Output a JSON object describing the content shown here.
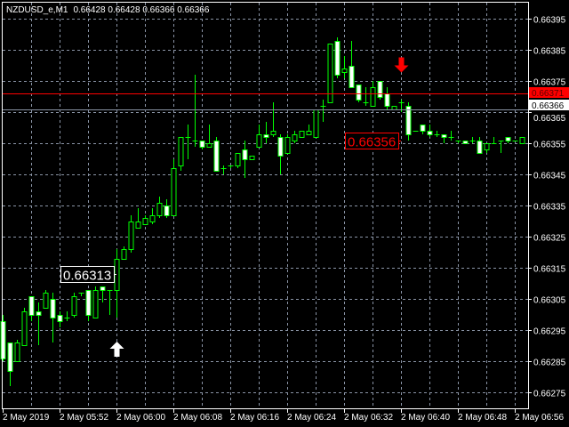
{
  "header": {
    "symbol": "NZDUSD_e,M1",
    "ohlc": "0.66428 0.66428 0.66366 0.66366"
  },
  "colors": {
    "background": "#000000",
    "grid": "#8a94a6",
    "candle": "#00ff00",
    "bear_body": "#ffffff",
    "bull_body": "#000000",
    "bid_line": "#8a94a6",
    "ask_line": "#ff0000",
    "sell_arrow": "#ff0000",
    "buy_arrow": "#ffffff"
  },
  "chart_data": {
    "type": "candlestick",
    "title": "",
    "grid": true,
    "ylim": [
      0.6627,
      0.664
    ],
    "y_ticks": [
      "0.66395",
      "0.66385",
      "0.66375",
      "0.66365",
      "0.66355",
      "0.66345",
      "0.66335",
      "0.66325",
      "0.66315",
      "0.66305",
      "0.66295",
      "0.66285",
      "0.66275"
    ],
    "x_tick_labels": [
      "2 May 2019",
      "2 May 05:52",
      "2 May 06:00",
      "2 May 06:08",
      "2 May 06:16",
      "2 May 06:24",
      "2 May 06:32",
      "2 May 06:40",
      "2 May 06:48",
      "2 May 06:56"
    ],
    "candles_ohlc": [
      [
        0.66298,
        0.663,
        0.66285,
        0.66286
      ],
      [
        0.66291,
        0.66291,
        0.66277,
        0.66282
      ],
      [
        0.66285,
        0.66292,
        0.66285,
        0.66291
      ],
      [
        0.6629,
        0.66302,
        0.6629,
        0.66301
      ],
      [
        0.66306,
        0.66306,
        0.66298,
        0.663
      ],
      [
        0.66301,
        0.66304,
        0.6629,
        0.663
      ],
      [
        0.66302,
        0.66308,
        0.66302,
        0.66307
      ],
      [
        0.66305,
        0.66307,
        0.66291,
        0.66299
      ],
      [
        0.663,
        0.66301,
        0.66296,
        0.66298
      ],
      [
        0.66299,
        0.66301,
        0.66298,
        0.66299
      ],
      [
        0.663,
        0.66307,
        0.66299,
        0.66306
      ],
      [
        0.66307,
        0.66307,
        0.66306,
        0.66307
      ],
      [
        0.66308,
        0.66308,
        0.66298,
        0.663
      ],
      [
        0.66299,
        0.66309,
        0.66299,
        0.66308
      ],
      [
        0.66309,
        0.66309,
        0.66304,
        0.66308
      ],
      [
        0.66308,
        0.66308,
        0.663,
        0.66308
      ],
      [
        0.66308,
        0.66321,
        0.66299,
        0.66318
      ],
      [
        0.66318,
        0.66322,
        0.66318,
        0.66321
      ],
      [
        0.66321,
        0.66332,
        0.6632,
        0.6633
      ],
      [
        0.66328,
        0.66334,
        0.66328,
        0.6633
      ],
      [
        0.66329,
        0.66332,
        0.66329,
        0.66331
      ],
      [
        0.6633,
        0.66334,
        0.66329,
        0.66332
      ],
      [
        0.66332,
        0.66338,
        0.66331,
        0.66336
      ],
      [
        0.66335,
        0.66337,
        0.66331,
        0.66332
      ],
      [
        0.66332,
        0.6635,
        0.66332,
        0.66347
      ],
      [
        0.66348,
        0.66357,
        0.66346,
        0.66357
      ],
      [
        0.66357,
        0.66361,
        0.6635,
        0.66357
      ],
      [
        0.66356,
        0.66377,
        0.66354,
        0.66356
      ],
      [
        0.66356,
        0.66356,
        0.66353,
        0.66354
      ],
      [
        0.66354,
        0.66361,
        0.66354,
        0.66355
      ],
      [
        0.66356,
        0.66357,
        0.66346,
        0.66346
      ],
      [
        0.66347,
        0.66348,
        0.66345,
        0.66347
      ],
      [
        0.66348,
        0.66348,
        0.66347,
        0.66348
      ],
      [
        0.66348,
        0.66352,
        0.66347,
        0.66352
      ],
      [
        0.66353,
        0.66356,
        0.66344,
        0.6635
      ],
      [
        0.6635,
        0.66351,
        0.6635,
        0.66351
      ],
      [
        0.66354,
        0.66361,
        0.66354,
        0.66358
      ],
      [
        0.66358,
        0.66362,
        0.66355,
        0.66357
      ],
      [
        0.66358,
        0.66368,
        0.66357,
        0.66359
      ],
      [
        0.66357,
        0.66358,
        0.66345,
        0.66351
      ],
      [
        0.66352,
        0.66358,
        0.66352,
        0.66357
      ],
      [
        0.66356,
        0.66359,
        0.66355,
        0.66358
      ],
      [
        0.66357,
        0.66359,
        0.66357,
        0.66359
      ],
      [
        0.66358,
        0.66361,
        0.66358,
        0.66359
      ],
      [
        0.66357,
        0.66366,
        0.66357,
        0.66366
      ],
      [
        0.66367,
        0.66369,
        0.66362,
        0.66367
      ],
      [
        0.66368,
        0.66387,
        0.66368,
        0.66387
      ],
      [
        0.66388,
        0.66389,
        0.66376,
        0.66377
      ],
      [
        0.66378,
        0.66383,
        0.66376,
        0.66379
      ],
      [
        0.6638,
        0.66388,
        0.66373,
        0.66373
      ],
      [
        0.66374,
        0.66374,
        0.66368,
        0.66369
      ],
      [
        0.66368,
        0.66373,
        0.66367,
        0.66368
      ],
      [
        0.66367,
        0.66375,
        0.66367,
        0.66373
      ],
      [
        0.66375,
        0.66375,
        0.66369,
        0.6637
      ],
      [
        0.66371,
        0.66373,
        0.66366,
        0.66367
      ],
      [
        0.66366,
        0.66367,
        0.66366,
        0.66367
      ],
      [
        0.66368,
        0.66369,
        0.66365,
        0.66368
      ],
      [
        0.66367,
        0.66368,
        0.66356,
        0.66358
      ],
      [
        0.66359,
        0.66359,
        0.66359,
        0.66359
      ],
      [
        0.66361,
        0.66361,
        0.66358,
        0.66359
      ],
      [
        0.66359,
        0.66361,
        0.66357,
        0.66358
      ],
      [
        0.66358,
        0.66359,
        0.66357,
        0.66358
      ],
      [
        0.66358,
        0.66358,
        0.66355,
        0.66357
      ],
      [
        0.66357,
        0.66359,
        0.66356,
        0.66357
      ],
      [
        0.66356,
        0.66356,
        0.66355,
        0.66356
      ],
      [
        0.66356,
        0.66356,
        0.66355,
        0.66355
      ],
      [
        0.66356,
        0.66357,
        0.66355,
        0.66356
      ],
      [
        0.66356,
        0.66357,
        0.66352,
        0.66352
      ],
      [
        0.66353,
        0.66355,
        0.66352,
        0.66355
      ],
      [
        0.66355,
        0.66357,
        0.66355,
        0.66355
      ],
      [
        0.66356,
        0.66356,
        0.66352,
        0.66356
      ],
      [
        0.66357,
        0.66357,
        0.66355,
        0.66356
      ],
      [
        0.66356,
        0.66356,
        0.66356,
        0.66356
      ],
      [
        0.66355,
        0.66357,
        0.66355,
        0.66357
      ]
    ],
    "price_lines": [
      {
        "label": "0.66371",
        "price": 0.66371,
        "kind": "ask"
      },
      {
        "label": "0.66366",
        "price": 0.66366,
        "kind": "bid"
      }
    ],
    "signals": [
      {
        "type": "buy",
        "candle_index": 16,
        "price": 0.66289
      },
      {
        "type": "sell",
        "candle_index": 56,
        "price": 0.6638
      }
    ],
    "price_labels": [
      {
        "text": "0.66313",
        "price": 0.66313,
        "candle_index": 16,
        "color": "#ffffff"
      },
      {
        "text": "0.66356",
        "price": 0.66356,
        "candle_index": 56,
        "color": "#ff0000"
      }
    ]
  }
}
